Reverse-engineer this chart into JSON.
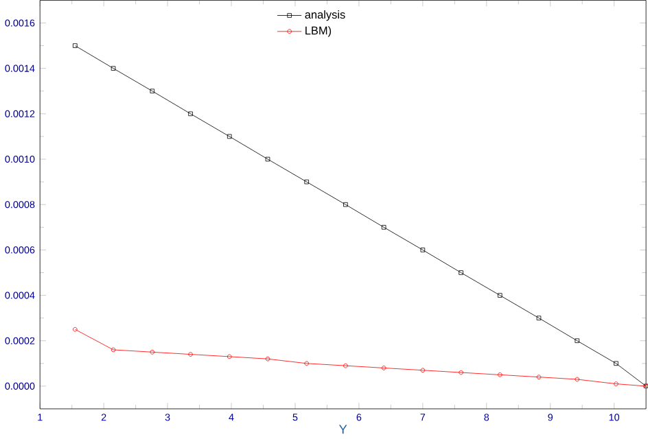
{
  "chart_data": {
    "type": "line",
    "xlabel": "Y",
    "xlim": [
      1,
      10.5
    ],
    "xticks": [
      1,
      2,
      3,
      4,
      5,
      6,
      7,
      8,
      9,
      10
    ],
    "ylim": [
      -0.0001,
      0.0017
    ],
    "yticks": [
      {
        "value": 0,
        "label": "0.0000"
      },
      {
        "value": 0.0002,
        "label": "0.0002"
      },
      {
        "value": 0.0004,
        "label": "0.0004"
      },
      {
        "value": 0.0006,
        "label": "0.0006"
      },
      {
        "value": 0.0008,
        "label": "0.0008"
      },
      {
        "value": 0.001,
        "label": "0.0010"
      },
      {
        "value": 0.0012,
        "label": "0.0012"
      },
      {
        "value": 0.0014,
        "label": "0.0014"
      },
      {
        "value": 0.0016,
        "label": "0.0016"
      }
    ],
    "legend": "top",
    "grid": false,
    "line_style": "solid",
    "x": [
      1.55,
      2.15,
      2.76,
      3.36,
      3.97,
      4.57,
      5.18,
      5.79,
      6.39,
      7.0,
      7.6,
      8.21,
      8.82,
      9.42,
      10.03,
      10.5
    ],
    "series": [
      {
        "name": "analysis",
        "color": "#000000",
        "marker": "square",
        "values": [
          0.0015,
          0.0014,
          0.0013,
          0.0012,
          0.0011,
          0.001,
          0.0009,
          0.0008,
          0.0007,
          0.0006,
          0.0005,
          0.0004,
          0.0003,
          0.0002,
          0.0001,
          0.0
        ]
      },
      {
        "name": "LBM)",
        "color": "#ff0000",
        "marker": "circle",
        "values": [
          0.00025,
          0.00016,
          0.00015,
          0.00014,
          0.00013,
          0.00012,
          0.0001,
          9e-05,
          8e-05,
          7e-05,
          6e-05,
          5e-05,
          4e-05,
          3e-05,
          1e-05,
          0.0
        ]
      }
    ]
  }
}
